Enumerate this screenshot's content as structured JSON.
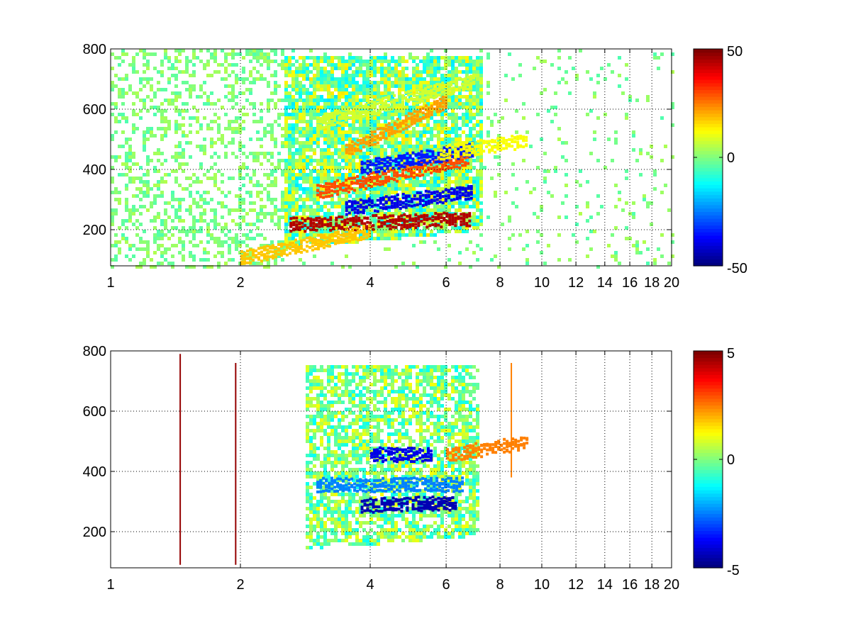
{
  "chart_data": [
    {
      "type": "heatmap",
      "title": "",
      "xlabel": "",
      "ylabel": "",
      "xscale": "log",
      "xlim": [
        1,
        20
      ],
      "ylim": [
        80,
        800
      ],
      "x_ticks": [
        1,
        2,
        4,
        6,
        8,
        10,
        12,
        14,
        16,
        18,
        20
      ],
      "x_tick_labels": [
        "1",
        "2",
        "4",
        "6",
        "8",
        "10",
        "12",
        "14",
        "16",
        "18",
        "20"
      ],
      "y_ticks": [
        200,
        400,
        600,
        800
      ],
      "y_tick_labels": [
        "200",
        "400",
        "600",
        "800"
      ],
      "grid": true,
      "colormap": "jet",
      "clim": [
        -50,
        50
      ],
      "colorbar_ticks": [
        -50,
        0,
        50
      ],
      "colorbar_tick_labels": [
        "-50",
        "0",
        "50"
      ],
      "features": [
        {
          "shape": "band",
          "x_from": 2.6,
          "x_to": 6.8,
          "y_start": 220,
          "y_end": 240,
          "value": 45
        },
        {
          "shape": "band",
          "x_from": 3.5,
          "x_to": 6.9,
          "y_start": 275,
          "y_end": 330,
          "value": -40
        },
        {
          "shape": "band",
          "x_from": 3.0,
          "x_to": 6.7,
          "y_start": 330,
          "y_end": 440,
          "value": 30
        },
        {
          "shape": "band",
          "x_from": 3.8,
          "x_to": 6.9,
          "y_start": 410,
          "y_end": 470,
          "value": -35
        },
        {
          "shape": "band",
          "x_from": 3.5,
          "x_to": 6.0,
          "y_start": 465,
          "y_end": 630,
          "value": 22
        },
        {
          "shape": "band",
          "x_from": 5.8,
          "x_to": 9.2,
          "y_start": 460,
          "y_end": 500,
          "value": 12
        },
        {
          "shape": "band",
          "x_from": 3.0,
          "x_to": 7.0,
          "y_start": 560,
          "y_end": 700,
          "value": 8
        },
        {
          "shape": "band",
          "x_from": 2.0,
          "x_to": 4.0,
          "y_start": 110,
          "y_end": 200,
          "value": 18
        }
      ]
    },
    {
      "type": "heatmap",
      "title": "",
      "xlabel": "",
      "ylabel": "",
      "xscale": "log",
      "xlim": [
        1,
        20
      ],
      "ylim": [
        80,
        800
      ],
      "x_ticks": [
        1,
        2,
        4,
        6,
        8,
        10,
        12,
        14,
        16,
        18,
        20
      ],
      "x_tick_labels": [
        "1",
        "2",
        "4",
        "6",
        "8",
        "10",
        "12",
        "14",
        "16",
        "18",
        "20"
      ],
      "y_ticks": [
        200,
        400,
        600,
        800
      ],
      "y_tick_labels": [
        "200",
        "400",
        "600",
        "800"
      ],
      "grid": true,
      "colormap": "jet",
      "clim": [
        -5,
        5
      ],
      "colorbar_ticks": [
        -5,
        0,
        5
      ],
      "colorbar_tick_labels": [
        "-5",
        "0",
        "5"
      ],
      "features": [
        {
          "shape": "band",
          "x_from": 3.8,
          "x_to": 6.3,
          "y_start": 290,
          "y_end": 300,
          "value": -4.5
        },
        {
          "shape": "band",
          "x_from": 3.0,
          "x_to": 6.5,
          "y_start": 360,
          "y_end": 360,
          "value": -2.5
        },
        {
          "shape": "band",
          "x_from": 4.0,
          "x_to": 5.5,
          "y_start": 460,
          "y_end": 460,
          "value": -4.0
        },
        {
          "shape": "band",
          "x_from": 6.0,
          "x_to": 9.2,
          "y_start": 460,
          "y_end": 500,
          "value": 2.5
        },
        {
          "shape": "vline",
          "x": 1.45,
          "y_from": 90,
          "y_to": 790,
          "value": 4.8
        },
        {
          "shape": "vline",
          "x": 1.95,
          "y_from": 90,
          "y_to": 760,
          "value": 4.8
        },
        {
          "shape": "vline",
          "x": 8.5,
          "y_from": 380,
          "y_to": 760,
          "value": 2.5
        }
      ]
    }
  ]
}
